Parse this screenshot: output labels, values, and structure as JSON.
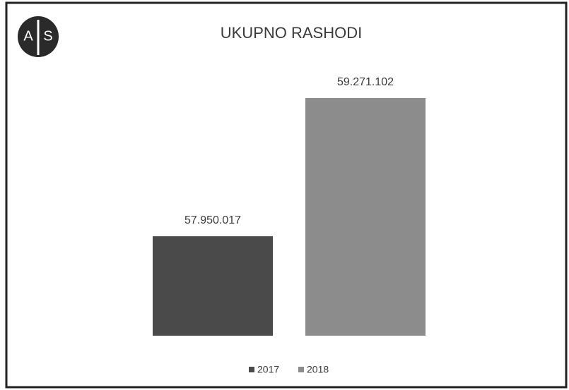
{
  "chart_data": {
    "type": "bar",
    "title": "UKUPNO RASHODI",
    "logo": {
      "left": "A",
      "right": "S"
    },
    "series": [
      {
        "name": "2017",
        "color": "#4a4a4a",
        "values": [
          57950017
        ],
        "value_labels": [
          "57.950.017"
        ]
      },
      {
        "name": "2018",
        "color": "#8c8c8c",
        "values": [
          59271102
        ],
        "value_labels": [
          "59.271.102"
        ]
      }
    ],
    "ylim": [
      57000000,
      59500000
    ]
  }
}
